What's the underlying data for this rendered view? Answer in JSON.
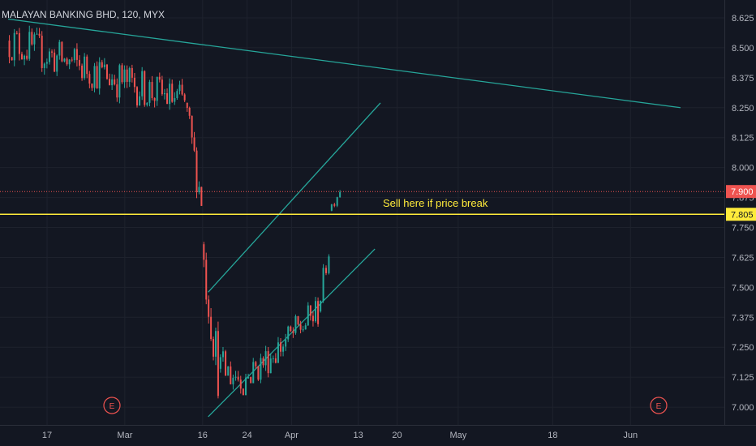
{
  "chart_data": {
    "type": "candlestick",
    "symbol_title": "MALAYAN BANKING BHD, 120, MYX",
    "ylim": [
      6.95,
      8.68
    ],
    "y_ticks": [
      "8.625",
      "8.500",
      "8.375",
      "8.250",
      "8.125",
      "8.000",
      "7.875",
      "7.750",
      "7.625",
      "7.500",
      "7.375",
      "7.250",
      "7.125",
      "7.000"
    ],
    "x_ticks": [
      {
        "label": "17",
        "date": "2020-02-17"
      },
      {
        "label": "Mar",
        "date": "2020-03-02"
      },
      {
        "label": "16",
        "date": "2020-03-16"
      },
      {
        "label": "24",
        "date": "2020-03-24"
      },
      {
        "label": "Apr",
        "date": "2020-04-01"
      },
      {
        "label": "13",
        "date": "2020-04-13"
      },
      {
        "label": "20",
        "date": "2020-04-20"
      },
      {
        "label": "May",
        "date": "2020-05-01"
      },
      {
        "label": "18",
        "date": "2020-05-18"
      },
      {
        "label": "Jun",
        "date": "2020-06-01"
      }
    ],
    "price_badges": [
      {
        "value": "7.900",
        "color": "#ef5350"
      },
      {
        "value": "7.805",
        "color": "#ffeb3b"
      }
    ],
    "horizontal_lines": [
      {
        "value": 7.9,
        "style": "dotted",
        "color": "#ef5350"
      },
      {
        "value": 7.805,
        "style": "solid",
        "color": "#ffeb3b"
      }
    ],
    "annotation": {
      "text": "Sell here if price break",
      "color": "#ffeb3b"
    },
    "earnings_markers": [
      "E",
      "E"
    ],
    "trendlines": [
      {
        "name": "long-term-resistance",
        "from": {
          "date": "2020-02-10",
          "value": 8.62
        },
        "to": {
          "date": "2020-06-10",
          "value": 8.25
        }
      },
      {
        "name": "channel-upper",
        "from": {
          "date": "2020-03-17",
          "value": 7.48
        },
        "to": {
          "date": "2020-04-17",
          "value": 8.27
        }
      },
      {
        "name": "channel-lower",
        "from": {
          "date": "2020-03-17",
          "value": 6.96
        },
        "to": {
          "date": "2020-04-16",
          "value": 7.66
        }
      }
    ],
    "segments": [
      {
        "from": "2020-02-10",
        "to": "2020-03-13",
        "start": 8.53,
        "end": 8.27,
        "low": 8.16,
        "high": 8.62
      },
      {
        "from": "2020-03-13",
        "to": "2020-03-16",
        "start": 8.27,
        "end": 7.86,
        "low": 7.84,
        "high": 8.3
      },
      {
        "from": "2020-03-16",
        "to": "2020-03-19",
        "start": 7.68,
        "end": 7.16,
        "low": 7.0,
        "high": 7.69
      },
      {
        "from": "2020-03-19",
        "to": "2020-03-24",
        "start": 7.16,
        "end": 7.12,
        "low": 7.05,
        "high": 7.55
      },
      {
        "from": "2020-03-24",
        "to": "2020-04-06",
        "start": 7.12,
        "end": 7.4,
        "low": 7.1,
        "high": 7.5
      },
      {
        "from": "2020-04-06",
        "to": "2020-04-08",
        "start": 7.4,
        "end": 7.66,
        "low": 7.38,
        "high": 7.68
      },
      {
        "from": "2020-04-08",
        "to": "2020-04-10",
        "start": 7.82,
        "end": 7.91,
        "low": 7.78,
        "high": 7.93
      }
    ],
    "candle_colors": {
      "up": "#26a69a",
      "down": "#ef5350"
    },
    "grid": true,
    "background": "#131722"
  }
}
